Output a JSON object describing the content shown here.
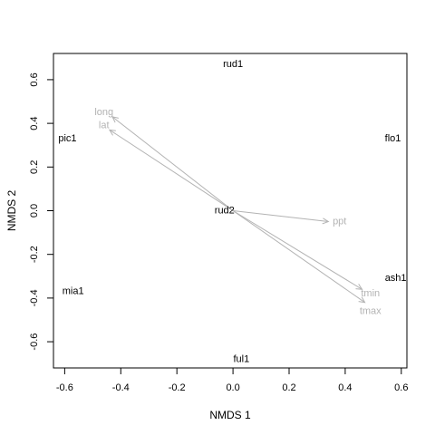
{
  "chart_data": {
    "type": "scatter",
    "xlabel": "NMDS 1",
    "ylabel": "NMDS 2",
    "xlim": [
      -0.64,
      0.62
    ],
    "ylim": [
      -0.72,
      0.72
    ],
    "xticks": [
      -0.6,
      -0.4,
      -0.2,
      0.0,
      0.2,
      0.4,
      0.6
    ],
    "yticks": [
      -0.6,
      -0.4,
      -0.2,
      0.0,
      0.2,
      0.4,
      0.6
    ],
    "xtick_labels": [
      "-0.6",
      "-0.4",
      "-0.2",
      "0.0",
      "0.2",
      "0.4",
      "0.6"
    ],
    "ytick_labels": [
      "-0.6",
      "-0.4",
      "-0.2",
      "0.0",
      "0.2",
      "0.4",
      "0.6"
    ],
    "grid": false,
    "colors": {
      "site_text": "#000000",
      "vector": "#b3b3b3",
      "axes": "#000000"
    },
    "sites": [
      {
        "label": "rud1",
        "x": 0.0,
        "y": 0.67
      },
      {
        "label": "pic1",
        "x": -0.59,
        "y": 0.33
      },
      {
        "label": "flo1",
        "x": 0.57,
        "y": 0.33
      },
      {
        "label": "rud2",
        "x": -0.03,
        "y": 0.0
      },
      {
        "label": "ash1",
        "x": 0.58,
        "y": -0.31
      },
      {
        "label": "mia1",
        "x": -0.57,
        "y": -0.37
      },
      {
        "label": "ful1",
        "x": 0.03,
        "y": -0.68
      }
    ],
    "vectors": [
      {
        "label": "long",
        "x": -0.43,
        "y": 0.43,
        "label_x": -0.46,
        "label_y": 0.45
      },
      {
        "label": "lat",
        "x": -0.44,
        "y": 0.37,
        "label_x": -0.46,
        "label_y": 0.39
      },
      {
        "label": "ppt",
        "x": 0.34,
        "y": -0.05,
        "label_x": 0.38,
        "label_y": -0.05
      },
      {
        "label": "tmin",
        "x": 0.46,
        "y": -0.36,
        "label_x": 0.49,
        "label_y": -0.38
      },
      {
        "label": "tmax",
        "x": 0.47,
        "y": -0.42,
        "label_x": 0.49,
        "label_y": -0.46
      }
    ]
  }
}
